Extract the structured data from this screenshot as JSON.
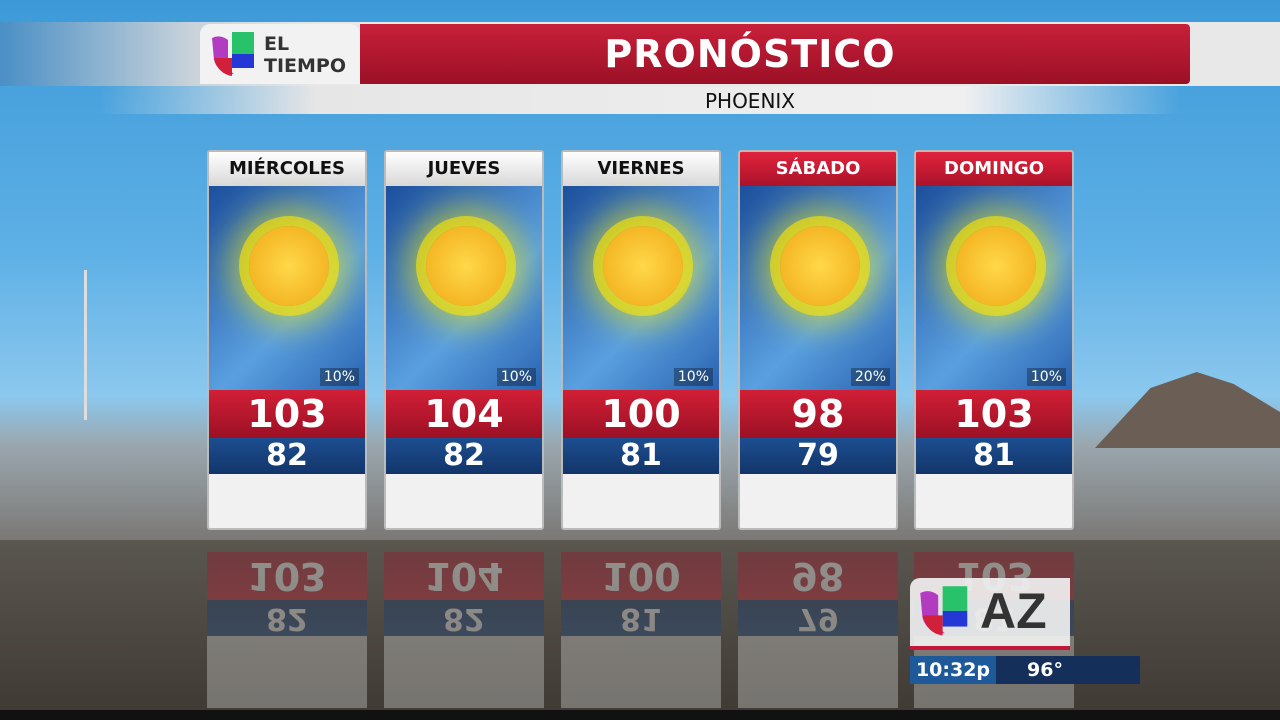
{
  "header": {
    "logo_text_line1": "EL",
    "logo_text_line2": "TIEMPO",
    "title": "PRONÓSTICO",
    "city": "PHOENIX"
  },
  "forecast": [
    {
      "day": "MIÉRCOLES",
      "condition": "sunny",
      "precip": "10%",
      "high": "103",
      "low": "82",
      "weekend": false
    },
    {
      "day": "JUEVES",
      "condition": "sunny",
      "precip": "10%",
      "high": "104",
      "low": "82",
      "weekend": false
    },
    {
      "day": "VIERNES",
      "condition": "sunny",
      "precip": "10%",
      "high": "100",
      "low": "81",
      "weekend": false
    },
    {
      "day": "SÁBADO",
      "condition": "sunny",
      "precip": "20%",
      "high": "98",
      "low": "79",
      "weekend": true
    },
    {
      "day": "DOMINGO",
      "condition": "sunny",
      "precip": "10%",
      "high": "103",
      "low": "81",
      "weekend": true
    }
  ],
  "bug": {
    "station": "AZ",
    "time": "10:32p",
    "temp": "96°"
  },
  "colors": {
    "red": "#c8203a",
    "blue": "#14305a",
    "sky": "#5eb0e6"
  }
}
